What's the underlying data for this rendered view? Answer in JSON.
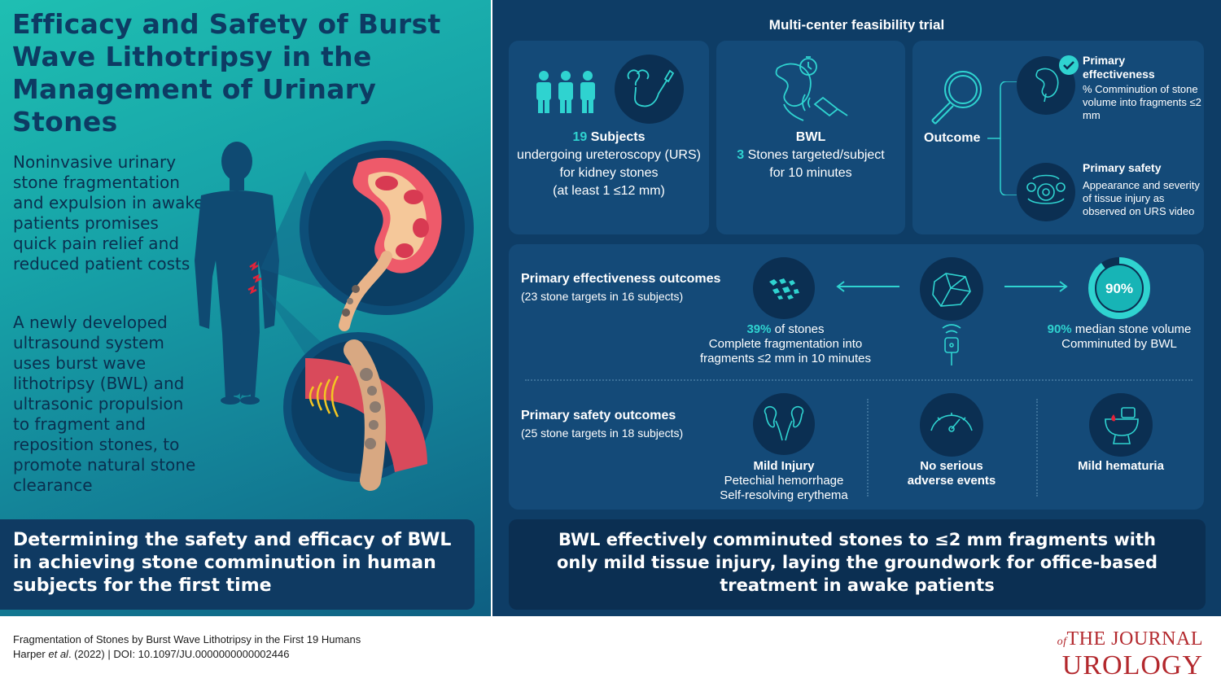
{
  "title": "Efficacy and Safety of Burst Wave Lithotripsy in the Management of Urinary Stones",
  "lead_paragraph_1": "Noninvasive urinary stone fragmentation and expulsion in awake patients promises quick pain relief and reduced patient costs",
  "lead_paragraph_2": "A newly developed ultrasound system uses burst wave lithotripsy (BWL) and ultrasonic propulsion to fragment and reposition stones, to promote natural stone clearance",
  "objective_banner": "Determining the safety and efficacy of BWL in achieving stone comminution in human subjects for the first time",
  "trial_title": "Multi-center feasibility trial",
  "subjects": {
    "number": "19",
    "label": "Subjects",
    "line2": "undergoing ureteroscopy (URS)",
    "line3": "for kidney stones",
    "line4": "(at least 1 ≤12 mm)"
  },
  "bwl": {
    "heading": "BWL",
    "number": "3",
    "line2": "Stones targeted/subject",
    "line3": "for 10 minutes"
  },
  "outcome": {
    "label": "Outcome",
    "primary_effectiveness_title": "Primary effectiveness",
    "primary_effectiveness_desc": "% Comminution of stone volume into fragments ≤2 mm",
    "primary_safety_title": "Primary safety",
    "primary_safety_desc": "Appearance and severity of tissue injury as observed on URS video"
  },
  "effectiveness": {
    "title": "Primary effectiveness outcomes",
    "subtitle": "(23 stone targets in 16 subjects)",
    "stones_pct": "39%",
    "stones_suffix": " of stones",
    "stones_line2": "Complete fragmentation into",
    "stones_line3": "fragments ≤2 mm in 10 minutes",
    "median_pct": "90%",
    "median_suffix": " median stone volume",
    "median_line2": "Comminuted by BWL",
    "donut_label": "90%",
    "donut_fraction": 0.9
  },
  "safety": {
    "title": "Primary safety outcomes",
    "subtitle": "(25 stone targets in 18 subjects)",
    "injury_title": "Mild Injury",
    "injury_line2": "Petechial hemorrhage",
    "injury_line3": "Self-resolving erythema",
    "adverse_line1": "No serious",
    "adverse_line2": "adverse events",
    "hematuria": "Mild hematuria"
  },
  "conclusion_banner": "BWL effectively comminuted stones to ≤2 mm fragments with only mild tissue injury, laying the groundwork for office-based treatment in awake patients",
  "citation": {
    "title": "Fragmentation of Stones by Burst Wave Lithotripsy in the First 19 Humans",
    "authors": "Harper ",
    "et_al": "et al",
    "rest": ". (2022) | DOI: 10.1097/JU.0000000000002446"
  },
  "journal": {
    "the_journal": "THE JOURNAL",
    "of": "of",
    "urology": "UROLOGY"
  },
  "colors": {
    "accent_teal": "#2fd3d0",
    "navy": "#0e3d66",
    "title_navy": "#0d3b63",
    "journal_red": "#b3282d"
  }
}
